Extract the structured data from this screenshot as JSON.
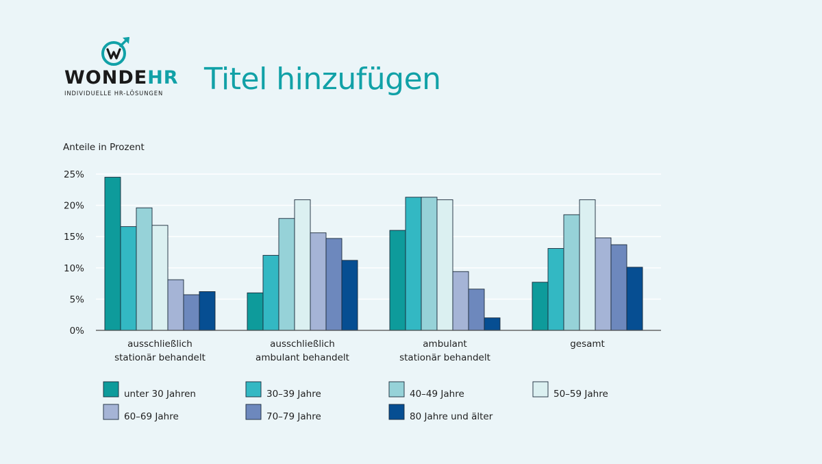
{
  "brand": {
    "name_part1": "WONDE",
    "name_part2": "HR",
    "tagline": "INDIVIDUELLE HR-LÖSUNGEN",
    "accent": "#11a1a7"
  },
  "page": {
    "title": "Titel hinzufügen"
  },
  "chart_data": {
    "type": "bar",
    "ylabel": "Anteile in Prozent",
    "ylim": [
      0,
      25
    ],
    "yticks": [
      0,
      5,
      10,
      15,
      20,
      25
    ],
    "ytick_labels": [
      "0%",
      "5%",
      "10%",
      "15%",
      "20%",
      "25%"
    ],
    "grid": true,
    "categories": [
      [
        "ausschließlich",
        "stationär behandelt"
      ],
      [
        "ausschließlich",
        "ambulant behandelt"
      ],
      [
        "ambulant",
        "stationär behandelt"
      ],
      [
        "gesamt"
      ]
    ],
    "series": [
      {
        "name": "unter 30 Jahren",
        "color": "#0e9b9b",
        "values": [
          24.5,
          6.0,
          16.0,
          7.7
        ]
      },
      {
        "name": "30–39 Jahre",
        "color": "#33b8c3",
        "values": [
          16.6,
          12.0,
          21.3,
          13.1
        ]
      },
      {
        "name": "40–49 Jahre",
        "color": "#96d2d8",
        "values": [
          19.6,
          17.9,
          21.3,
          18.5
        ]
      },
      {
        "name": "50–59 Jahre",
        "color": "#dbf0f1",
        "values": [
          16.8,
          20.9,
          20.9,
          20.9
        ]
      },
      {
        "name": "60–69 Jahre",
        "color": "#a5b4d6",
        "values": [
          8.1,
          15.6,
          9.4,
          14.8
        ]
      },
      {
        "name": "70–79 Jahre",
        "color": "#6d88bd",
        "values": [
          5.7,
          14.7,
          6.6,
          13.7
        ]
      },
      {
        "name": "80 Jahre und älter",
        "color": "#064e92",
        "values": [
          6.2,
          11.2,
          2.0,
          10.1
        ]
      }
    ],
    "legend_position": "bottom"
  }
}
